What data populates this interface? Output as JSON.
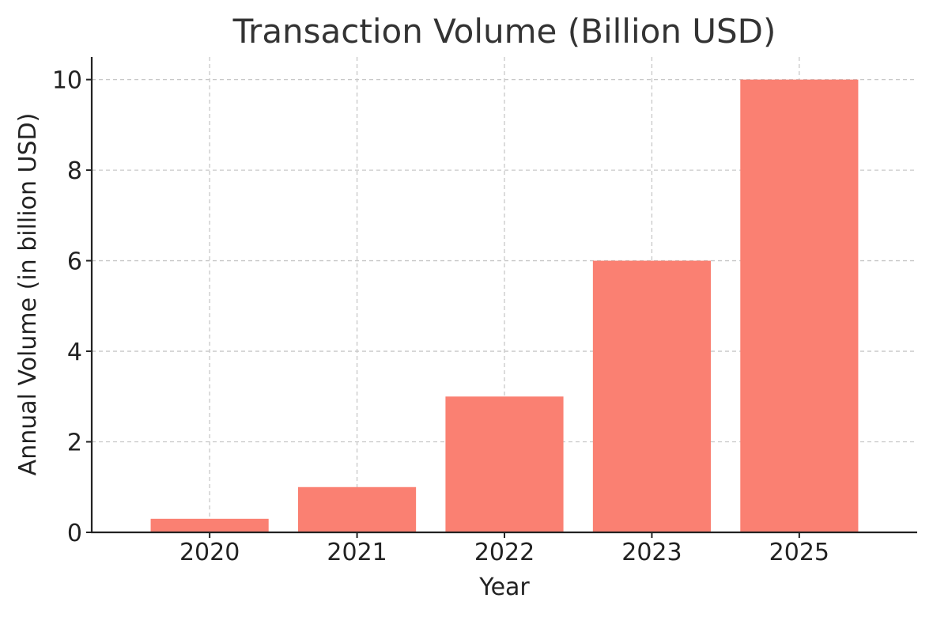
{
  "chart_data": {
    "type": "bar",
    "title": "Transaction Volume (Billion USD)",
    "xlabel": "Year",
    "ylabel": "Annual Volume (in billion USD)",
    "categories": [
      "2020",
      "2021",
      "2022",
      "2023",
      "2025"
    ],
    "values": [
      0.3,
      1,
      3,
      6,
      10
    ],
    "ylim": [
      0,
      10.5
    ],
    "yticks": [
      0,
      2,
      4,
      6,
      8,
      10
    ],
    "grid": true,
    "colors": {
      "bar": "#fa8072"
    }
  }
}
